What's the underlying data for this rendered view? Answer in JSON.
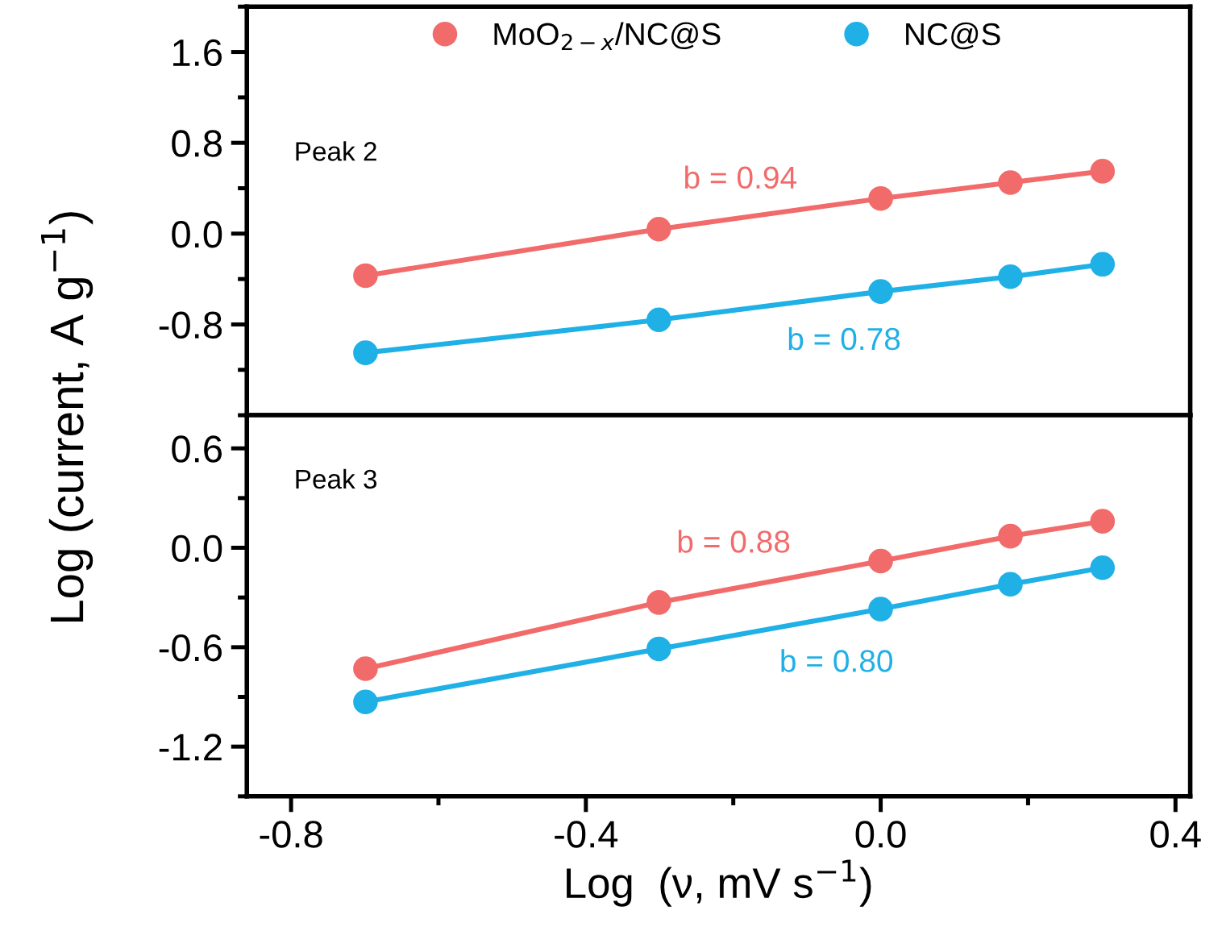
{
  "chart_data": [
    {
      "type": "line",
      "ylabel": "Log (current, A g$^{−1}$)",
      "x": [
        -0.699,
        -0.301,
        0,
        0.176,
        0.301
      ],
      "series": [
        {
          "name": "MoO$_{2−x}$/NC@S",
          "color": "#f26b6b",
          "values": [
            -0.37,
            0.04,
            0.31,
            0.45,
            0.55
          ]
        },
        {
          "name": "NC@S",
          "color": "#1fb0e6",
          "values": [
            -1.05,
            -0.76,
            -0.51,
            -0.38,
            -0.27
          ]
        }
      ],
      "annotations": [
        "Peak 2",
        "b = 0.94",
        "b = 0.78"
      ],
      "xlim": [
        -0.86,
        0.42
      ],
      "xticks": [
        -0.8,
        -0.4,
        0.0,
        0.4
      ],
      "ylim": [
        -1.6,
        2.0
      ],
      "yticks": [
        -0.8,
        {
          "value": 0,
          "label": "0.0"
        },
        0.8,
        1.6
      ],
      "tick_labels": "y",
      "marker": "circle",
      "legend": "top",
      "grid": false
    },
    {
      "type": "line",
      "xlabel": "Log  (ν, mV s$^{−1}$)",
      "x": [
        -0.699,
        -0.301,
        0,
        0.176,
        0.301
      ],
      "series": [
        {
          "color": "#f26b6b",
          "values": [
            -0.73,
            -0.33,
            -0.08,
            0.07,
            0.16
          ]
        },
        {
          "color": "#1fb0e6",
          "values": [
            -0.93,
            -0.61,
            -0.37,
            -0.22,
            -0.12
          ]
        }
      ],
      "annotations": [
        "Peak 3",
        "b = 0.88",
        "b = 0.80"
      ],
      "xlim": [
        -0.86,
        0.42
      ],
      "xticks": [
        -0.8,
        -0.4,
        {
          "value": 0,
          "label": "0.0"
        },
        0.4
      ],
      "ylim": [
        -1.5,
        0.8
      ],
      "yticks": [
        -1.2,
        -0.6,
        {
          "value": 0,
          "label": "0.0"
        },
        0.6
      ],
      "marker": "circle",
      "grid": false
    }
  ]
}
